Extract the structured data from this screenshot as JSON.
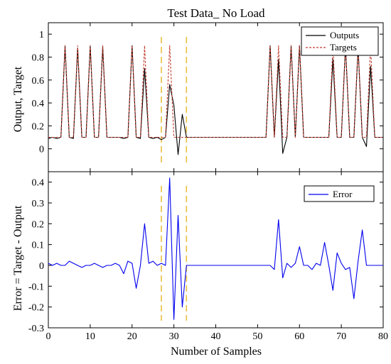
{
  "chart_data": [
    {
      "type": "line",
      "title": "Test Data_ No Load",
      "xlabel": "",
      "ylabel": "Output, Target",
      "xlim": [
        0,
        80
      ],
      "ylim": [
        -0.2,
        1.1
      ],
      "xticks": [
        "0",
        "10",
        "20",
        "30",
        "40",
        "50",
        "60",
        "70",
        "80"
      ],
      "yticks": [
        "0",
        "0.2",
        "0.4",
        "0.6",
        "0.8",
        "1"
      ],
      "grid": false,
      "legend_position": "top-right",
      "x": [
        0,
        1,
        2,
        3,
        4,
        5,
        6,
        7,
        8,
        9,
        10,
        11,
        12,
        13,
        14,
        15,
        16,
        17,
        18,
        19,
        20,
        21,
        22,
        23,
        24,
        25,
        26,
        27,
        28,
        29,
        30,
        31,
        32,
        33,
        34,
        35,
        36,
        37,
        38,
        39,
        40,
        41,
        42,
        43,
        44,
        45,
        46,
        47,
        48,
        49,
        50,
        51,
        52,
        53,
        54,
        55,
        56,
        57,
        58,
        59,
        60,
        61,
        62,
        63,
        64,
        65,
        66,
        67,
        68,
        69,
        70,
        71,
        72,
        73,
        74,
        75,
        76,
        77,
        78,
        79,
        80
      ],
      "series": [
        {
          "name": "Outputs",
          "color": "#000000",
          "style": "solid",
          "values": [
            0.09,
            0.1,
            0.09,
            0.1,
            0.9,
            0.1,
            0.09,
            0.88,
            0.1,
            0.1,
            0.9,
            0.1,
            0.1,
            0.89,
            0.1,
            0.1,
            0.1,
            0.1,
            0.09,
            0.1,
            0.9,
            0.1,
            0.09,
            0.7,
            0.1,
            0.09,
            0.1,
            0.08,
            0.1,
            0.56,
            0.38,
            -0.05,
            0.3,
            0.1,
            0.1,
            0.1,
            0.1,
            0.1,
            0.1,
            0.1,
            0.1,
            0.1,
            0.1,
            0.1,
            0.1,
            0.1,
            0.1,
            0.1,
            0.1,
            0.1,
            0.1,
            0.1,
            0.1,
            0.9,
            0.1,
            0.78,
            -0.04,
            0.1,
            0.9,
            0.1,
            0.9,
            0.1,
            0.1,
            0.1,
            0.1,
            0.1,
            0.1,
            0.1,
            0.78,
            0.1,
            0.1,
            0.9,
            0.1,
            0.1,
            0.88,
            0.1,
            0.02,
            0.72,
            0.1,
            0.1,
            0.1
          ]
        },
        {
          "name": "Targets",
          "color": "#c0392b",
          "style": "dashed",
          "values": [
            0.1,
            0.1,
            0.1,
            0.1,
            0.9,
            0.1,
            0.1,
            0.9,
            0.1,
            0.1,
            0.9,
            0.1,
            0.1,
            0.9,
            0.1,
            0.1,
            0.1,
            0.1,
            0.1,
            0.1,
            0.9,
            0.1,
            0.1,
            0.9,
            0.1,
            0.1,
            0.1,
            0.1,
            0.1,
            0.9,
            0.1,
            0.1,
            0.1,
            0.1,
            0.1,
            0.1,
            0.1,
            0.1,
            0.1,
            0.1,
            0.1,
            0.1,
            0.1,
            0.1,
            0.1,
            0.1,
            0.1,
            0.1,
            0.1,
            0.1,
            0.1,
            0.1,
            0.1,
            0.9,
            0.1,
            0.9,
            0.1,
            0.1,
            0.9,
            0.1,
            0.9,
            0.1,
            0.1,
            0.1,
            0.1,
            0.1,
            0.1,
            0.1,
            0.9,
            0.1,
            0.1,
            0.9,
            0.1,
            0.1,
            0.9,
            0.1,
            0.1,
            0.9,
            0.1,
            0.1,
            0.1
          ]
        }
      ],
      "annotations": [
        {
          "type": "vertical-dashed-line",
          "x": 27,
          "color": "#e8c040"
        },
        {
          "type": "vertical-dashed-line",
          "x": 33,
          "color": "#e8c040"
        }
      ]
    },
    {
      "type": "line",
      "title": "",
      "xlabel": "Number of Samples",
      "ylabel": "Error = Target - Output",
      "xlim": [
        0,
        80
      ],
      "ylim": [
        -0.3,
        0.45
      ],
      "xticks": [
        "0",
        "10",
        "20",
        "30",
        "40",
        "50",
        "60",
        "70",
        "80"
      ],
      "yticks": [
        "-0.3",
        "-0.2",
        "-0.1",
        "0",
        "0.1",
        "0.2",
        "0.3",
        "0.4"
      ],
      "grid": false,
      "legend_position": "top-right",
      "x": [
        0,
        1,
        2,
        3,
        4,
        5,
        6,
        7,
        8,
        9,
        10,
        11,
        12,
        13,
        14,
        15,
        16,
        17,
        18,
        19,
        20,
        21,
        22,
        23,
        24,
        25,
        26,
        27,
        28,
        29,
        30,
        31,
        32,
        33,
        34,
        35,
        36,
        37,
        38,
        39,
        40,
        41,
        42,
        43,
        44,
        45,
        46,
        47,
        48,
        49,
        50,
        51,
        52,
        53,
        54,
        55,
        56,
        57,
        58,
        59,
        60,
        61,
        62,
        63,
        64,
        65,
        66,
        67,
        68,
        69,
        70,
        71,
        72,
        73,
        74,
        75,
        76,
        77,
        78,
        79,
        80
      ],
      "series": [
        {
          "name": "Error",
          "color": "#0000ee",
          "style": "solid",
          "values": [
            0.01,
            0.0,
            0.01,
            0.0,
            0.0,
            0.02,
            0.01,
            0.0,
            -0.01,
            0.0,
            0.0,
            0.01,
            0.0,
            -0.01,
            0.0,
            0.0,
            0.01,
            0.0,
            -0.04,
            0.02,
            0.01,
            -0.11,
            0.0,
            0.2,
            0.01,
            0.02,
            0.0,
            0.01,
            0.0,
            0.42,
            -0.26,
            0.24,
            -0.2,
            0.0,
            0.0,
            0.0,
            0.0,
            0.0,
            0.0,
            0.0,
            0.0,
            0.0,
            0.0,
            0.0,
            0.0,
            0.0,
            0.0,
            0.0,
            0.0,
            0.0,
            0.0,
            0.0,
            0.0,
            0.0,
            -0.02,
            0.22,
            -0.06,
            0.01,
            -0.01,
            0.01,
            0.09,
            0.0,
            0.0,
            -0.02,
            0.01,
            0.0,
            0.11,
            0.0,
            -0.12,
            0.06,
            0.01,
            -0.02,
            -0.01,
            -0.16,
            0.02,
            0.17,
            0.0,
            0.0,
            0.0,
            0.0,
            0.0
          ]
        }
      ],
      "annotations": [
        {
          "type": "vertical-dashed-line",
          "x": 27,
          "color": "#e8c040"
        },
        {
          "type": "vertical-dashed-line",
          "x": 33,
          "color": "#e8c040"
        }
      ]
    }
  ]
}
